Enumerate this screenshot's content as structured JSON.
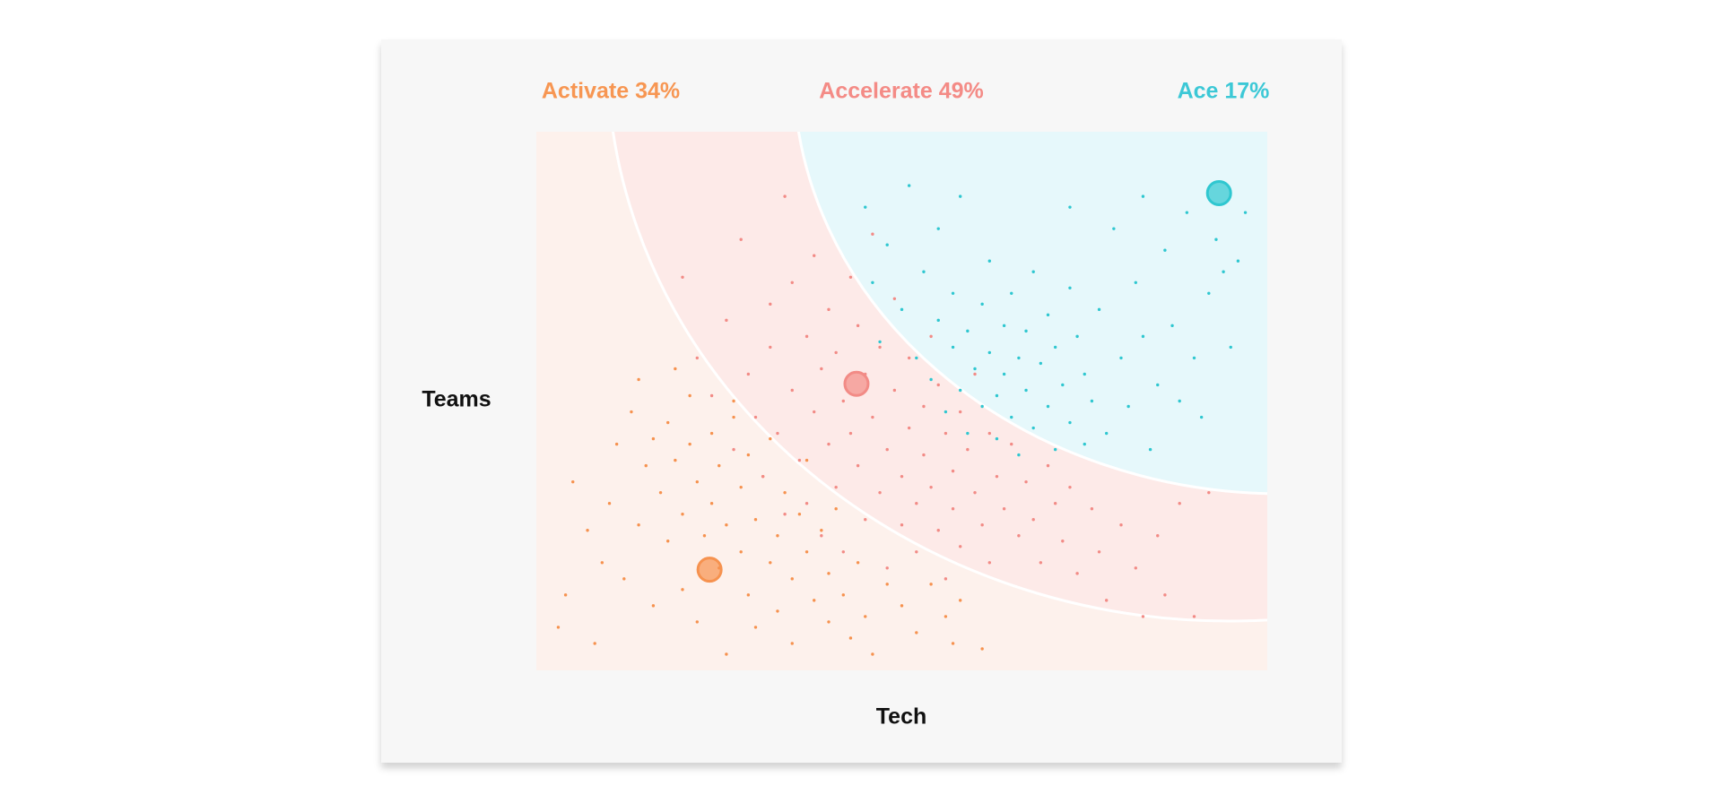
{
  "chart_data": {
    "type": "scatter",
    "xlabel": "Tech",
    "ylabel": "Teams",
    "xlim": [
      0,
      100
    ],
    "ylim": [
      0,
      100
    ],
    "series": [
      {
        "name": "Activate 34%",
        "color": "#f6924f",
        "label_color": "#f79652",
        "highlight": [
          23.7,
          18.7
        ],
        "points": [
          [
            3,
            8
          ],
          [
            4,
            14
          ],
          [
            5,
            35
          ],
          [
            7,
            26
          ],
          [
            8,
            5
          ],
          [
            10,
            31
          ],
          [
            9,
            20
          ],
          [
            11,
            42
          ],
          [
            12,
            17
          ],
          [
            13,
            48
          ],
          [
            14,
            27
          ],
          [
            15,
            38
          ],
          [
            16,
            43
          ],
          [
            16,
            12
          ],
          [
            17,
            33
          ],
          [
            18,
            24
          ],
          [
            18,
            46
          ],
          [
            19,
            39
          ],
          [
            20,
            29
          ],
          [
            20,
            15
          ],
          [
            21,
            42
          ],
          [
            22,
            35
          ],
          [
            22,
            9
          ],
          [
            23,
            25
          ],
          [
            24,
            44
          ],
          [
            24,
            31
          ],
          [
            25,
            19
          ],
          [
            25,
            38
          ],
          [
            26,
            27
          ],
          [
            26,
            3
          ],
          [
            27,
            47
          ],
          [
            28,
            34
          ],
          [
            28,
            22
          ],
          [
            29,
            40
          ],
          [
            29,
            14
          ],
          [
            30,
            28
          ],
          [
            30,
            8
          ],
          [
            31,
            36
          ],
          [
            32,
            20
          ],
          [
            32,
            43
          ],
          [
            33,
            25
          ],
          [
            33,
            11
          ],
          [
            34,
            33
          ],
          [
            35,
            17
          ],
          [
            35,
            5
          ],
          [
            36,
            29
          ],
          [
            37,
            22
          ],
          [
            37,
            39
          ],
          [
            38,
            13
          ],
          [
            39,
            26
          ],
          [
            40,
            9
          ],
          [
            40,
            18
          ],
          [
            41,
            30
          ],
          [
            42,
            14
          ],
          [
            43,
            6
          ],
          [
            44,
            20
          ],
          [
            45,
            10
          ],
          [
            46,
            3
          ],
          [
            48,
            16
          ],
          [
            50,
            12
          ],
          [
            52,
            7
          ],
          [
            54,
            16
          ],
          [
            56,
            10
          ],
          [
            57,
            5
          ],
          [
            58,
            13
          ],
          [
            61,
            4
          ],
          [
            21,
            51
          ],
          [
            14,
            54
          ],
          [
            27,
            50
          ],
          [
            19,
            56
          ]
        ]
      },
      {
        "name": "Accelerate 49%",
        "color": "#f28b86",
        "label_color": "#f48b86",
        "highlight": [
          43.8,
          53.2
        ],
        "points": [
          [
            20,
            73
          ],
          [
            22,
            58
          ],
          [
            24,
            51
          ],
          [
            26,
            65
          ],
          [
            27,
            41
          ],
          [
            28,
            80
          ],
          [
            29,
            55
          ],
          [
            30,
            47
          ],
          [
            31,
            36
          ],
          [
            32,
            68
          ],
          [
            32,
            60
          ],
          [
            33,
            44
          ],
          [
            34,
            29
          ],
          [
            34,
            88
          ],
          [
            35,
            52
          ],
          [
            35,
            72
          ],
          [
            36,
            39
          ],
          [
            37,
            62
          ],
          [
            37,
            31
          ],
          [
            38,
            48
          ],
          [
            38,
            77
          ],
          [
            39,
            56
          ],
          [
            39,
            25
          ],
          [
            40,
            42
          ],
          [
            40,
            67
          ],
          [
            41,
            34
          ],
          [
            41,
            59
          ],
          [
            42,
            50
          ],
          [
            42,
            22
          ],
          [
            43,
            73
          ],
          [
            43,
            44
          ],
          [
            44,
            38
          ],
          [
            44,
            64
          ],
          [
            45,
            28
          ],
          [
            45,
            55
          ],
          [
            46,
            47
          ],
          [
            46,
            81
          ],
          [
            47,
            33
          ],
          [
            47,
            60
          ],
          [
            48,
            41
          ],
          [
            48,
            19
          ],
          [
            49,
            52
          ],
          [
            49,
            69
          ],
          [
            50,
            36
          ],
          [
            50,
            27
          ],
          [
            51,
            45
          ],
          [
            51,
            58
          ],
          [
            52,
            31
          ],
          [
            52,
            22
          ],
          [
            53,
            49
          ],
          [
            53,
            40
          ],
          [
            54,
            62
          ],
          [
            54,
            34
          ],
          [
            55,
            26
          ],
          [
            55,
            53
          ],
          [
            56,
            44
          ],
          [
            56,
            17
          ],
          [
            57,
            37
          ],
          [
            57,
            30
          ],
          [
            58,
            48
          ],
          [
            58,
            23
          ],
          [
            59,
            41
          ],
          [
            60,
            33
          ],
          [
            60,
            55
          ],
          [
            61,
            27
          ],
          [
            62,
            44
          ],
          [
            62,
            20
          ],
          [
            63,
            36
          ],
          [
            64,
            30
          ],
          [
            65,
            42
          ],
          [
            66,
            25
          ],
          [
            67,
            35
          ],
          [
            68,
            28
          ],
          [
            69,
            20
          ],
          [
            70,
            38
          ],
          [
            71,
            31
          ],
          [
            72,
            24
          ],
          [
            73,
            34
          ],
          [
            74,
            18
          ],
          [
            76,
            30
          ],
          [
            77,
            22
          ],
          [
            78,
            13
          ],
          [
            80,
            27
          ],
          [
            82,
            19
          ],
          [
            83,
            10
          ],
          [
            85,
            25
          ],
          [
            86,
            14
          ],
          [
            88,
            31
          ],
          [
            90,
            10
          ],
          [
            92,
            33
          ]
        ]
      },
      {
        "name": "Ace 17%",
        "color": "#2fc7d0",
        "label_color": "#3cc8d6",
        "highlight": [
          93.4,
          88.6
        ],
        "points": [
          [
            45,
            86
          ],
          [
            46,
            72
          ],
          [
            47,
            61
          ],
          [
            48,
            79
          ],
          [
            50,
            67
          ],
          [
            51,
            90
          ],
          [
            52,
            58
          ],
          [
            53,
            74
          ],
          [
            54,
            54
          ],
          [
            55,
            65
          ],
          [
            55,
            82
          ],
          [
            56,
            48
          ],
          [
            57,
            60
          ],
          [
            57,
            70
          ],
          [
            58,
            52
          ],
          [
            58,
            88
          ],
          [
            59,
            63
          ],
          [
            59,
            44
          ],
          [
            60,
            56
          ],
          [
            61,
            68
          ],
          [
            61,
            49
          ],
          [
            62,
            59
          ],
          [
            62,
            76
          ],
          [
            63,
            51
          ],
          [
            63,
            43
          ],
          [
            64,
            64
          ],
          [
            64,
            55
          ],
          [
            65,
            47
          ],
          [
            65,
            70
          ],
          [
            66,
            58
          ],
          [
            66,
            40
          ],
          [
            67,
            52
          ],
          [
            67,
            63
          ],
          [
            68,
            45
          ],
          [
            68,
            74
          ],
          [
            69,
            57
          ],
          [
            70,
            49
          ],
          [
            70,
            66
          ],
          [
            71,
            41
          ],
          [
            71,
            60
          ],
          [
            72,
            53
          ],
          [
            73,
            46
          ],
          [
            73,
            71
          ],
          [
            74,
            62
          ],
          [
            75,
            42
          ],
          [
            75,
            55
          ],
          [
            76,
            50
          ],
          [
            77,
            67
          ],
          [
            78,
            44
          ],
          [
            79,
            82
          ],
          [
            80,
            58
          ],
          [
            81,
            49
          ],
          [
            82,
            72
          ],
          [
            83,
            62
          ],
          [
            84,
            41
          ],
          [
            85,
            53
          ],
          [
            86,
            78
          ],
          [
            87,
            64
          ],
          [
            88,
            50
          ],
          [
            89,
            85
          ],
          [
            90,
            58
          ],
          [
            91,
            47
          ],
          [
            92,
            70
          ],
          [
            93,
            80
          ],
          [
            94,
            74
          ],
          [
            95,
            60
          ],
          [
            96,
            76
          ],
          [
            97,
            85
          ],
          [
            83,
            88
          ],
          [
            73,
            86
          ]
        ]
      }
    ]
  }
}
